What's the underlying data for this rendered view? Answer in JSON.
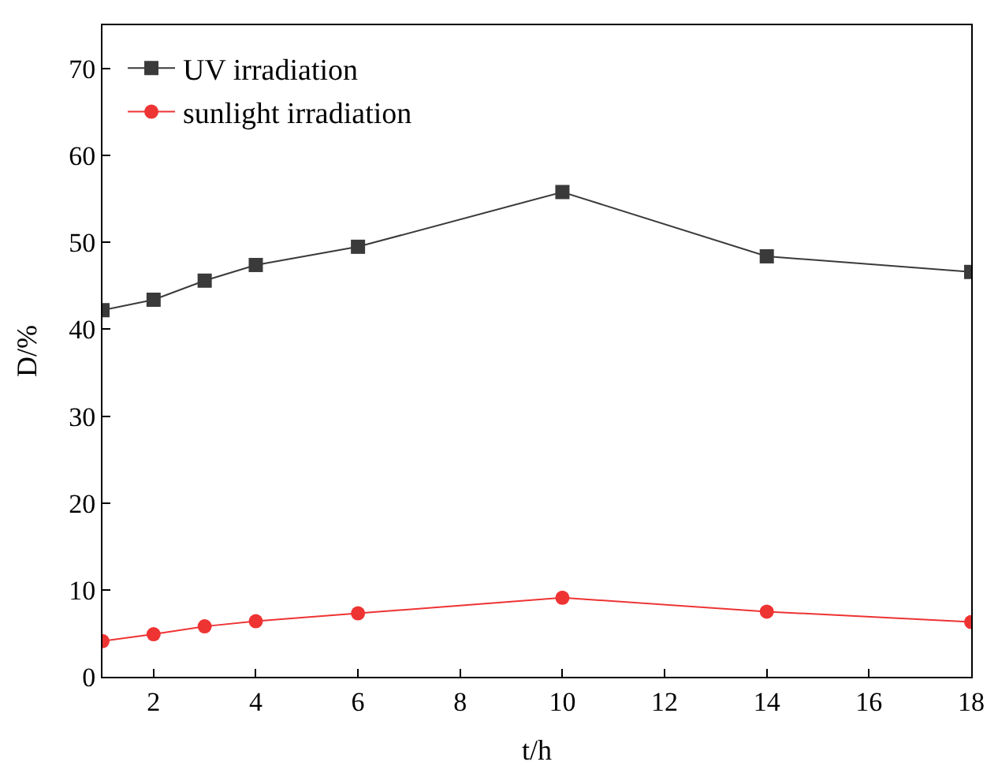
{
  "chart_data": {
    "type": "line",
    "xlabel": "t/h",
    "ylabel": "D/%",
    "x": [
      1,
      2,
      3,
      4,
      6,
      10,
      14,
      18
    ],
    "series": [
      {
        "name": "UV irradiation",
        "color": "#3a3a3a",
        "marker": "square",
        "values": [
          42.2,
          43.4,
          45.6,
          47.4,
          49.5,
          55.8,
          48.4,
          46.6
        ]
      },
      {
        "name": "sunlight irradiation",
        "color": "#ee3333",
        "marker": "circle",
        "values": [
          4.1,
          4.9,
          5.8,
          6.4,
          7.3,
          9.1,
          7.5,
          6.3
        ]
      }
    ],
    "xlim": [
      1,
      18
    ],
    "xticks": [
      2,
      4,
      6,
      8,
      10,
      12,
      14,
      16,
      18
    ],
    "ylim": [
      0,
      75
    ],
    "yticks": [
      0,
      10,
      20,
      30,
      40,
      50,
      60,
      70
    ],
    "legend": "top left"
  }
}
